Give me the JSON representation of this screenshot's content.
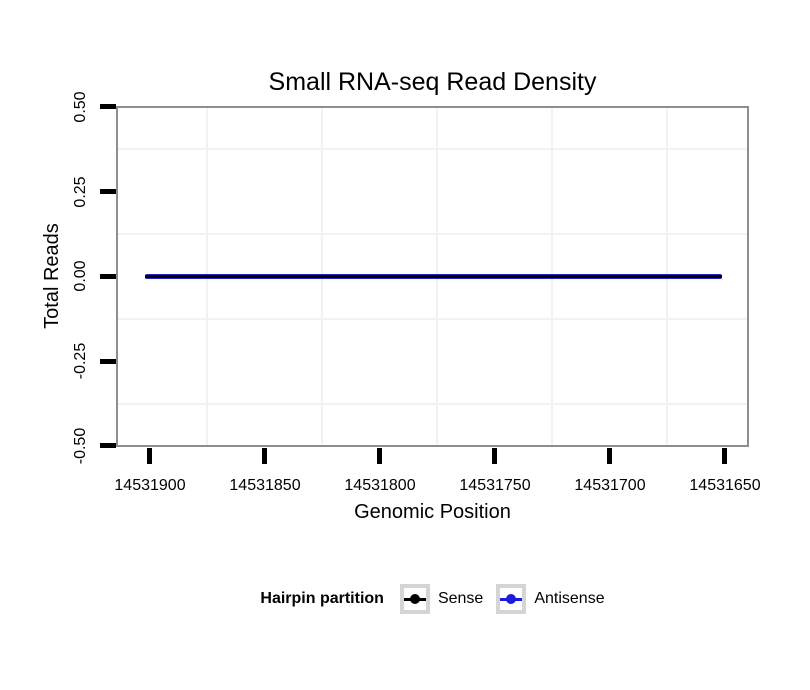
{
  "chart_data": {
    "type": "line",
    "title": "Small RNA-seq Read Density",
    "xlabel": "Genomic Position",
    "ylabel": "Total Reads",
    "x_tick_labels": [
      "14531900",
      "14531850",
      "14531800",
      "14531750",
      "14531700",
      "14531650"
    ],
    "y_tick_labels": [
      "0.50",
      "0.25",
      "0.00",
      "-0.25",
      "-0.50"
    ],
    "x_axis_reversed": true,
    "xlim": [
      14531912,
      14531641
    ],
    "ylim": [
      -0.5,
      0.5
    ],
    "grid": "minor-gridlines-only",
    "panel_border_color": "#8e8e8e",
    "gridline_color": "#f2f2f2",
    "tick_color": "#000000",
    "series": [
      {
        "name": "Sense",
        "color": "#000000",
        "x_start": 14531902,
        "x_end": 14531651,
        "y_constant": 0
      },
      {
        "name": "Antisense",
        "color": "#2222cc",
        "x_start": 14531902,
        "x_end": 14531651,
        "y_constant": 0
      }
    ],
    "legend": {
      "position": "bottom",
      "title": "Hairpin partition",
      "items": [
        {
          "label": "Sense",
          "color": "#000000"
        },
        {
          "label": "Antisense",
          "color": "#1c1ce0"
        }
      ]
    }
  }
}
